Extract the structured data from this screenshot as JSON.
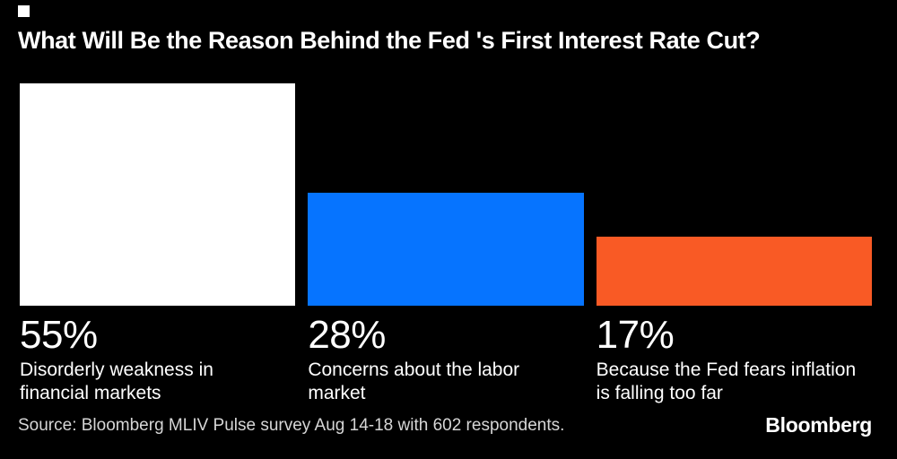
{
  "title": "What Will Be the Reason Behind the Fed 's First Interest Rate Cut?",
  "source": "Source: Bloomberg MLIV Pulse survey Aug 14-18 with 602 respondents.",
  "brand": "Bloomberg",
  "colors": {
    "background": "#000000",
    "title_text": "#ffffff",
    "label_text": "#ffffff",
    "source_text": "#d6d6d6",
    "marker": "#ffffff"
  },
  "chart_data": {
    "type": "bar",
    "title": "What Will Be the Reason Behind the Fed 's First Interest Rate Cut?",
    "categories": [
      "Disorderly weakness in financial markets",
      "Concerns about the labor market",
      "Because the Fed fears inflation is falling too far"
    ],
    "values": [
      55,
      28,
      17
    ],
    "value_labels": [
      "55%",
      "28%",
      "17%"
    ],
    "unit": "%",
    "bar_colors": [
      "#ffffff",
      "#0674ff",
      "#f95a25"
    ],
    "ylim": [
      0,
      55
    ],
    "xlabel": "",
    "ylabel": "",
    "grid": false,
    "legend": "none",
    "orientation": "vertical"
  },
  "bars": [
    {
      "value_label": "55%",
      "label_lines": [
        "Disorderly weakness in",
        "financial markets"
      ],
      "color": "#ffffff"
    },
    {
      "value_label": "28%",
      "label_lines": [
        "Concerns about the labor",
        "market"
      ],
      "color": "#0674ff"
    },
    {
      "value_label": "17%",
      "label_lines": [
        "Because the Fed fears inflation",
        "is falling too far"
      ],
      "color": "#f95a25"
    }
  ]
}
